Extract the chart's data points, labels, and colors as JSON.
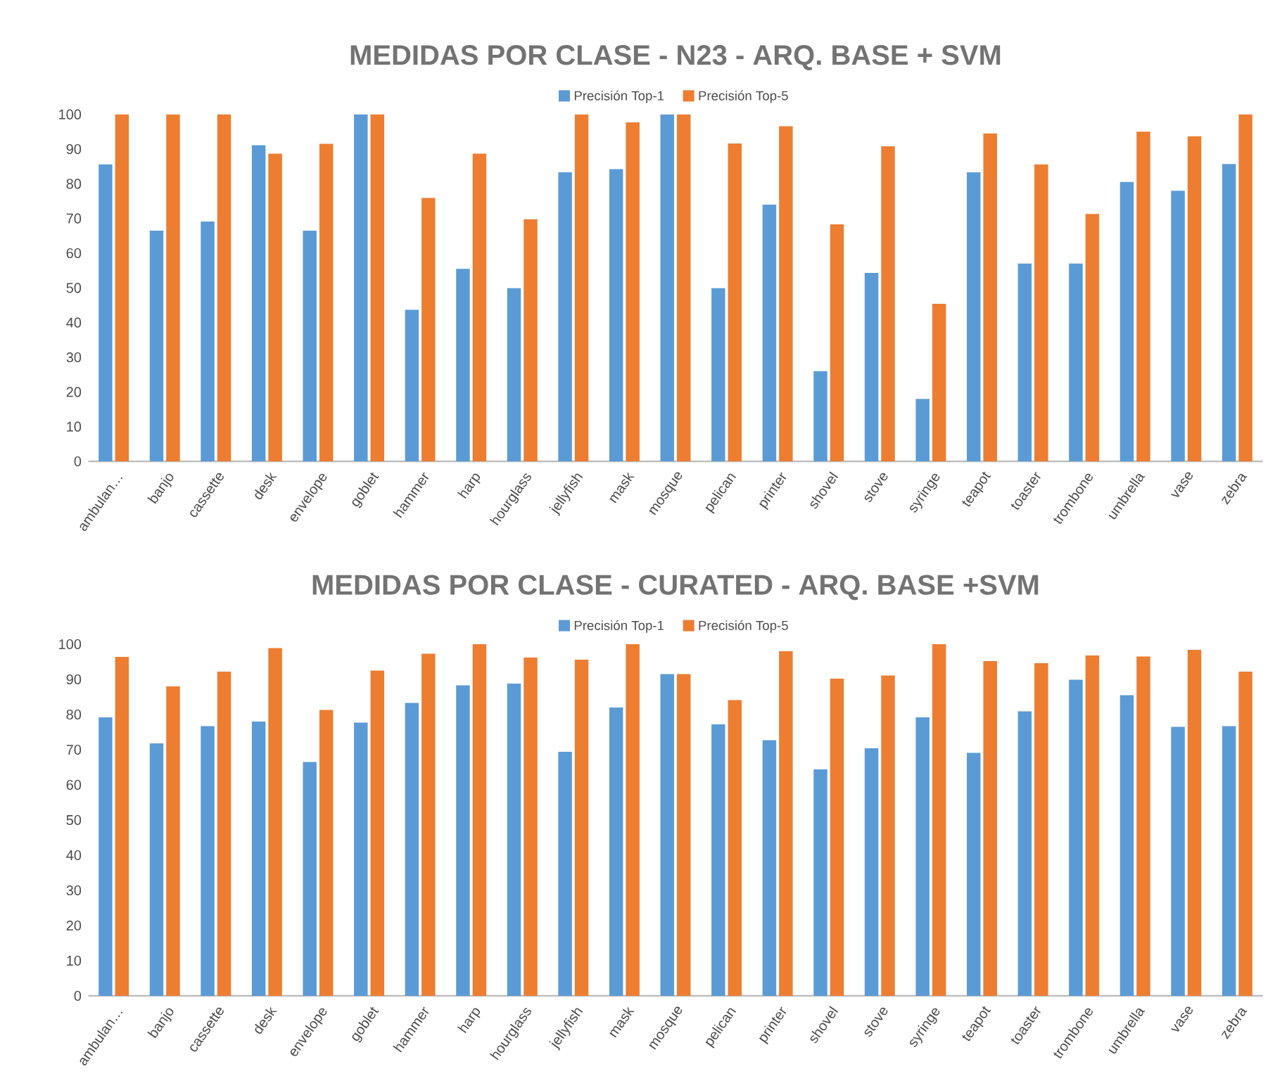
{
  "chart_data": [
    {
      "type": "bar",
      "title": "MEDIDAS POR CLASE - N23 - ARQ. BASE + SVM",
      "categories": [
        "ambulan…",
        "banjo",
        "cassette",
        "desk",
        "envelope",
        "goblet",
        "hammer",
        "harp",
        "hourglass",
        "jellyfish",
        "mask",
        "mosque",
        "pelican",
        "printer",
        "shovel",
        "stove",
        "syringe",
        "teapot",
        "toaster",
        "trombone",
        "umbrella",
        "vase",
        "zebra"
      ],
      "series": [
        {
          "name": "Precisión Top-1",
          "color": "#5b9bd5",
          "values": [
            85.6,
            66.5,
            69.1,
            91.1,
            66.5,
            100,
            43.7,
            55.5,
            49.9,
            83.3,
            84.2,
            100,
            49.9,
            74,
            26,
            54.3,
            18,
            83.3,
            57,
            57,
            80.5,
            78,
            85.7
          ]
        },
        {
          "name": "Precisión Top-5",
          "color": "#ed7d31",
          "values": [
            100,
            100,
            100,
            88.7,
            91.5,
            100,
            75.9,
            88.7,
            69.8,
            100,
            97.7,
            100,
            91.6,
            96.6,
            68.3,
            90.8,
            45.4,
            94.5,
            85.6,
            71.3,
            95,
            93.7,
            100
          ]
        }
      ],
      "ylim": [
        0,
        100
      ],
      "yticks": [
        0,
        10,
        20,
        30,
        40,
        50,
        60,
        70,
        80,
        90,
        100
      ],
      "grid": false,
      "legend": "top"
    },
    {
      "type": "bar",
      "title": "MEDIDAS POR CLASE - CURATED - ARQ. BASE +SVM",
      "categories": [
        "ambulan…",
        "banjo",
        "cassette",
        "desk",
        "envelope",
        "goblet",
        "hammer",
        "harp",
        "hourglass",
        "jellyfish",
        "mask",
        "mosque",
        "pelican",
        "printer",
        "shovel",
        "stove",
        "syringe",
        "teapot",
        "toaster",
        "trombone",
        "umbrella",
        "vase",
        "zebra"
      ],
      "series": [
        {
          "name": "Precisión Top-1",
          "color": "#5b9bd5",
          "values": [
            79.2,
            71.8,
            76.7,
            78,
            66.5,
            77.7,
            83.3,
            88.3,
            88.8,
            69.4,
            82,
            91.5,
            77.2,
            72.7,
            64.4,
            70.4,
            79.2,
            69.1,
            80.9,
            89.9,
            85.5,
            76.5,
            76.7
          ]
        },
        {
          "name": "Precisión Top-5",
          "color": "#ed7d31",
          "values": [
            96.4,
            88,
            92.2,
            98.9,
            81.3,
            92.5,
            97.3,
            100,
            96.2,
            95.6,
            100,
            91.5,
            84.1,
            98,
            90.2,
            91.1,
            100,
            95.2,
            94.6,
            96.8,
            96.5,
            98.4,
            92.2
          ]
        }
      ],
      "ylim": [
        0,
        100
      ],
      "yticks": [
        0,
        10,
        20,
        30,
        40,
        50,
        60,
        70,
        80,
        90,
        100
      ],
      "grid": false,
      "legend": "top"
    }
  ]
}
